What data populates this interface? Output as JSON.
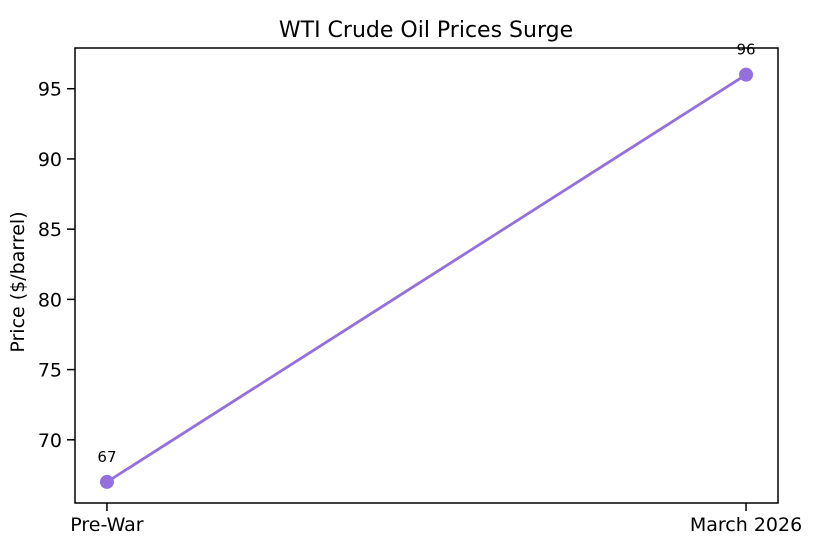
{
  "figure": {
    "background": "#ffffff",
    "axis_color": "#000000",
    "text_color": "#000000"
  },
  "chart_data": {
    "type": "line",
    "title": "WTI Crude Oil Prices Surge",
    "xlabel": "",
    "ylabel": "Price ($/barrel)",
    "categories": [
      "Pre-War",
      "March 2026"
    ],
    "series": [
      {
        "values": [
          67,
          96
        ],
        "point_labels": [
          "67",
          "96"
        ],
        "color": "#9370DB",
        "marker": "circle"
      }
    ],
    "yticks": [
      70,
      75,
      80,
      85,
      90,
      95
    ],
    "ylim": [
      65.5,
      97.9
    ],
    "xlim": [
      -0.05,
      1.05
    ],
    "grid": false,
    "legend": "none"
  }
}
